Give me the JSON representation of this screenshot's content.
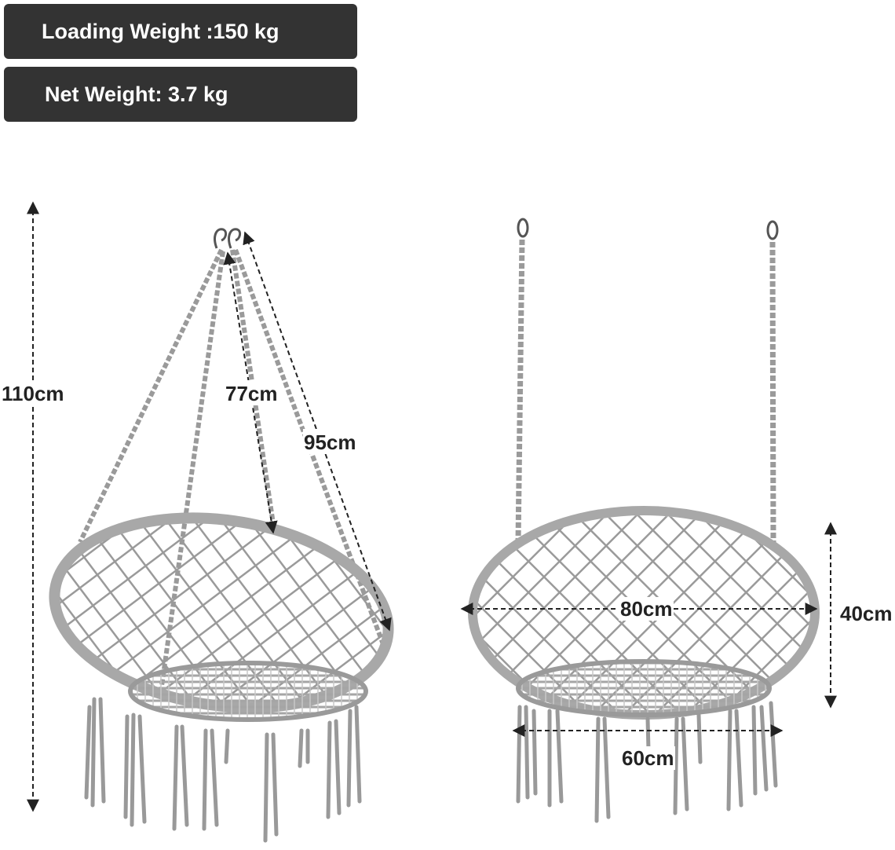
{
  "specs": {
    "loading_weight": "Loading Weight :150 kg",
    "net_weight": "Net Weight: 3.7 kg"
  },
  "dimensions": {
    "total_height": "110cm",
    "rope_inner": "77cm",
    "rope_outer": "95cm",
    "width_top": "80cm",
    "seat_height": "40cm",
    "seat_width": "60cm"
  },
  "colors": {
    "badge_bg": "#333333",
    "rope": "#9a9a9a",
    "arrow": "#222222"
  }
}
